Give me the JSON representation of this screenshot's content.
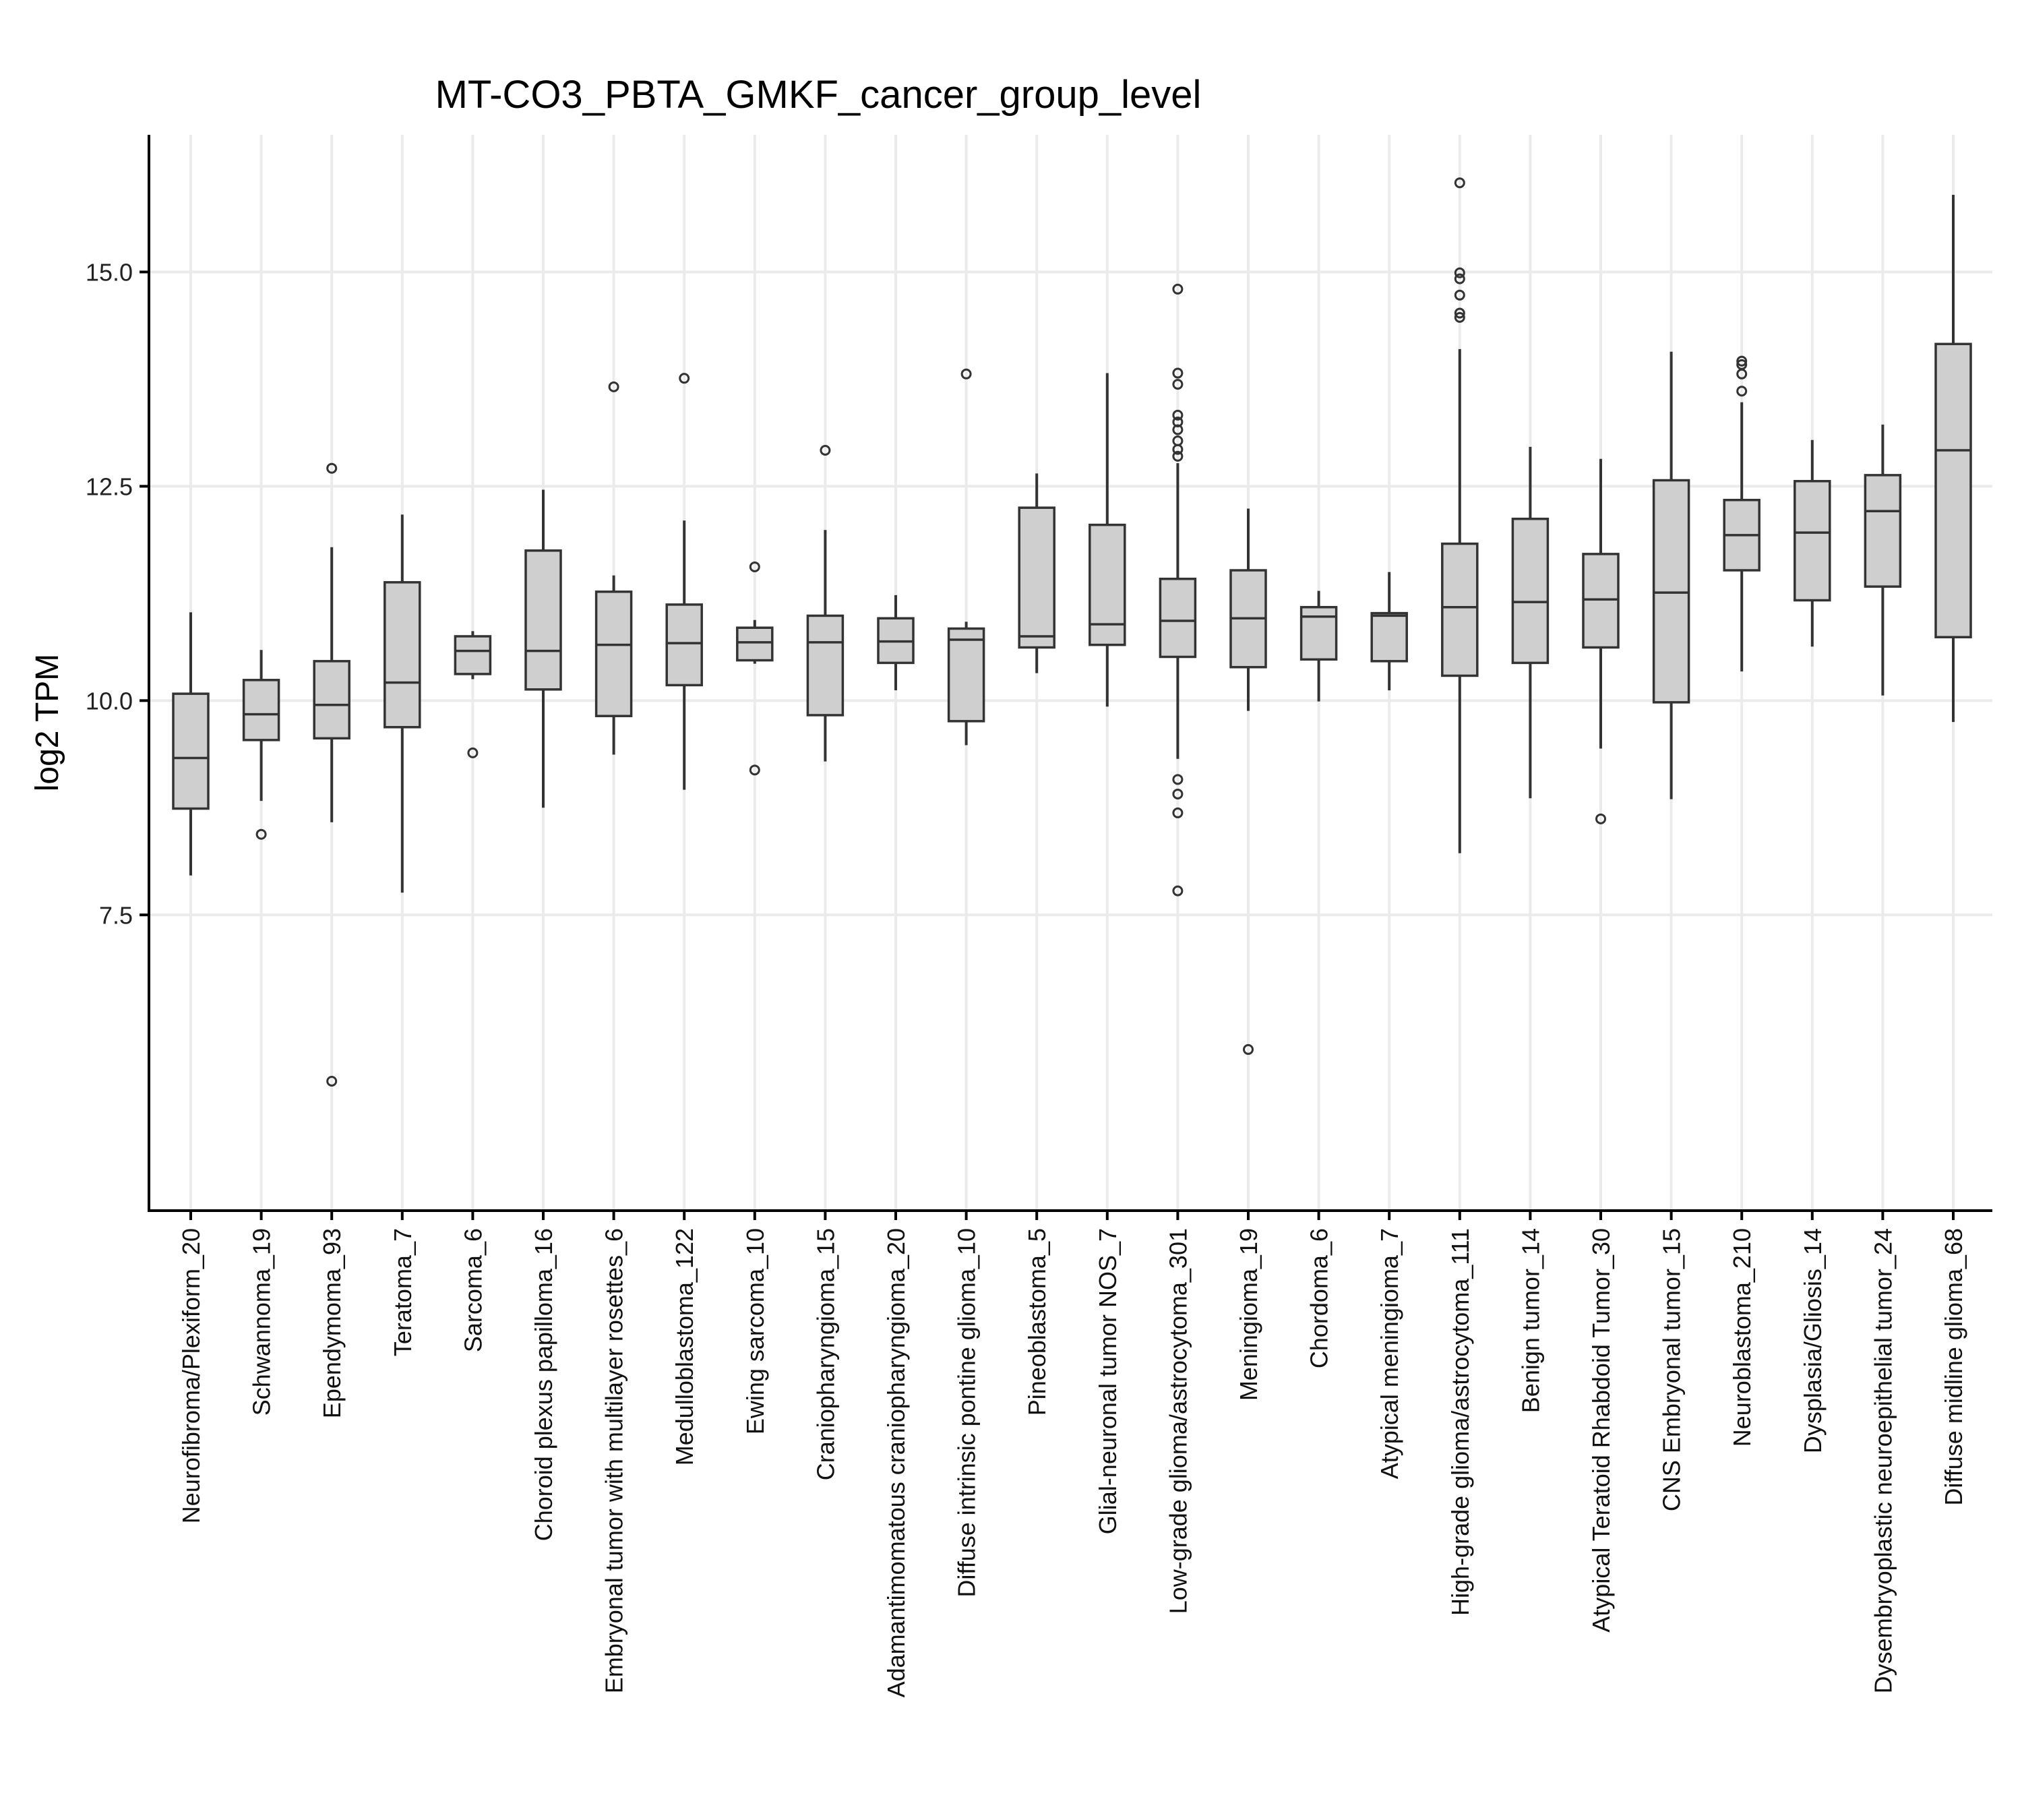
{
  "chart_data": {
    "type": "boxplot",
    "title": "MT-CO3_PBTA_GMKF_cancer_group_level",
    "ylabel": "log2 TPM",
    "xlabel": "",
    "ylim": [
      4.05,
      16.6
    ],
    "yticks": [
      7.5,
      10.0,
      12.5,
      15.0
    ],
    "ytick_labels": [
      "7.5",
      "10.0",
      "12.5",
      "15.0"
    ],
    "grid": true,
    "categories": [
      "Neurofibroma/Plexiform_20",
      "Schwannoma_19",
      "Ependymoma_93",
      "Teratoma_7",
      "Sarcoma_6",
      "Choroid plexus papilloma_16",
      "Embryonal tumor with multilayer rosettes_6",
      "Medulloblastoma_122",
      "Ewing sarcoma_10",
      "Craniopharyngioma_15",
      "Adamantimomatous craniopharyngioma_20",
      "Diffuse intrinsic pontine glioma_10",
      "Pineoblastoma_5",
      "Glial-neuronal tumor NOS_7",
      "Low-grade glioma/astrocytoma_301",
      "Meningioma_19",
      "Chordoma_6",
      "Atypical meningioma_7",
      "High-grade glioma/astrocytoma_111",
      "Benign tumor_14",
      "Atypical Teratoid Rhabdoid Tumor_30",
      "CNS Embryonal tumor_15",
      "Neuroblastoma_210",
      "Dysplasia/Gliosis_14",
      "Dysembryoplastic neuroepithelial tumor_24",
      "Diffuse midline glioma_68"
    ],
    "boxes": [
      {
        "whislo": 7.96,
        "q1": 8.74,
        "med": 9.33,
        "q3": 10.08,
        "whishi": 11.03,
        "fliers": []
      },
      {
        "whislo": 8.83,
        "q1": 9.54,
        "med": 9.84,
        "q3": 10.24,
        "whishi": 10.59,
        "fliers": [
          8.44
        ]
      },
      {
        "whislo": 8.58,
        "q1": 9.56,
        "med": 9.95,
        "q3": 10.46,
        "whishi": 11.79,
        "fliers": [
          12.71,
          5.56
        ]
      },
      {
        "whislo": 7.76,
        "q1": 9.69,
        "med": 10.21,
        "q3": 11.38,
        "whishi": 12.17,
        "fliers": []
      },
      {
        "whislo": 10.25,
        "q1": 10.31,
        "med": 10.58,
        "q3": 10.75,
        "whishi": 10.81,
        "fliers": [
          9.39
        ]
      },
      {
        "whislo": 8.75,
        "q1": 10.13,
        "med": 10.58,
        "q3": 11.75,
        "whishi": 12.46,
        "fliers": []
      },
      {
        "whislo": 9.37,
        "q1": 9.82,
        "med": 10.65,
        "q3": 11.27,
        "whishi": 11.46,
        "fliers": [
          13.66
        ]
      },
      {
        "whislo": 8.96,
        "q1": 10.18,
        "med": 10.67,
        "q3": 11.12,
        "whishi": 12.1,
        "fliers": [
          13.76
        ]
      },
      {
        "whislo": 10.43,
        "q1": 10.47,
        "med": 10.68,
        "q3": 10.85,
        "whishi": 10.94,
        "fliers": [
          11.56,
          9.19
        ]
      },
      {
        "whislo": 9.29,
        "q1": 9.83,
        "med": 10.68,
        "q3": 10.99,
        "whishi": 11.99,
        "fliers": [
          12.92
        ]
      },
      {
        "whislo": 10.12,
        "q1": 10.44,
        "med": 10.69,
        "q3": 10.96,
        "whishi": 11.23,
        "fliers": []
      },
      {
        "whislo": 9.48,
        "q1": 9.76,
        "med": 10.71,
        "q3": 10.84,
        "whishi": 10.92,
        "fliers": [
          13.81
        ]
      },
      {
        "whislo": 10.32,
        "q1": 10.62,
        "med": 10.75,
        "q3": 12.25,
        "whishi": 12.65,
        "fliers": []
      },
      {
        "whislo": 9.93,
        "q1": 10.65,
        "med": 10.89,
        "q3": 12.05,
        "whishi": 13.82,
        "fliers": []
      },
      {
        "whislo": 9.32,
        "q1": 10.51,
        "med": 10.93,
        "q3": 11.42,
        "whishi": 12.77,
        "fliers": [
          14.8,
          13.82,
          13.69,
          13.33,
          13.25,
          13.16,
          13.03,
          12.93,
          12.85,
          9.08,
          8.91,
          8.69,
          7.78
        ]
      },
      {
        "whislo": 9.88,
        "q1": 10.39,
        "med": 10.96,
        "q3": 11.52,
        "whishi": 12.24,
        "fliers": [
          5.93
        ]
      },
      {
        "whislo": 9.99,
        "q1": 10.48,
        "med": 10.98,
        "q3": 11.09,
        "whishi": 11.28,
        "fliers": []
      },
      {
        "whislo": 10.12,
        "q1": 10.46,
        "med": 10.99,
        "q3": 11.02,
        "whishi": 11.5,
        "fliers": []
      },
      {
        "whislo": 8.22,
        "q1": 10.29,
        "med": 11.09,
        "q3": 11.83,
        "whishi": 14.1,
        "fliers": [
          16.04,
          14.99,
          14.92,
          14.73,
          14.52,
          14.47
        ]
      },
      {
        "whislo": 8.86,
        "q1": 10.44,
        "med": 11.15,
        "q3": 12.12,
        "whishi": 12.96,
        "fliers": []
      },
      {
        "whislo": 9.44,
        "q1": 10.62,
        "med": 11.18,
        "q3": 11.71,
        "whishi": 12.82,
        "fliers": [
          8.62
        ]
      },
      {
        "whislo": 8.85,
        "q1": 9.98,
        "med": 11.26,
        "q3": 12.57,
        "whishi": 14.07,
        "fliers": []
      },
      {
        "whislo": 10.34,
        "q1": 11.52,
        "med": 11.93,
        "q3": 12.34,
        "whishi": 13.48,
        "fliers": [
          13.96,
          13.92,
          13.81,
          13.61
        ]
      },
      {
        "whislo": 10.63,
        "q1": 11.17,
        "med": 11.96,
        "q3": 12.56,
        "whishi": 13.04,
        "fliers": []
      },
      {
        "whislo": 10.06,
        "q1": 11.33,
        "med": 12.21,
        "q3": 12.63,
        "whishi": 13.22,
        "fliers": []
      },
      {
        "whislo": 9.75,
        "q1": 10.74,
        "med": 12.92,
        "q3": 14.16,
        "whishi": 15.9,
        "fliers": []
      }
    ]
  }
}
